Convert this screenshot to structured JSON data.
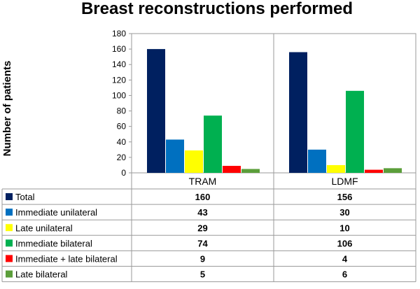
{
  "chart_data": {
    "type": "bar",
    "title": "Breast reconstructions performed",
    "xlabel": "",
    "ylabel": "Number of patients",
    "ylim": [
      0,
      180
    ],
    "yticks": [
      0,
      20,
      40,
      60,
      80,
      100,
      120,
      140,
      160,
      180
    ],
    "categories": [
      "TRAM",
      "LDMF"
    ],
    "series": [
      {
        "name": "Total",
        "color": "#002060",
        "values": [
          160,
          156
        ]
      },
      {
        "name": "Immediate unilateral",
        "color": "#0070C0",
        "values": [
          43,
          30
        ]
      },
      {
        "name": "Late unilateral",
        "color": "#FFFF00",
        "values": [
          29,
          10
        ]
      },
      {
        "name": "Immediate bilateral",
        "color": "#00B050",
        "values": [
          74,
          106
        ]
      },
      {
        "name": "Immediate + late bilateral",
        "color": "#FF0000",
        "values": [
          9,
          4
        ]
      },
      {
        "name": "Late bilateral",
        "color": "#5B9E3A",
        "values": [
          5,
          6
        ]
      }
    ],
    "legend": "data-table-below",
    "grid": false
  }
}
